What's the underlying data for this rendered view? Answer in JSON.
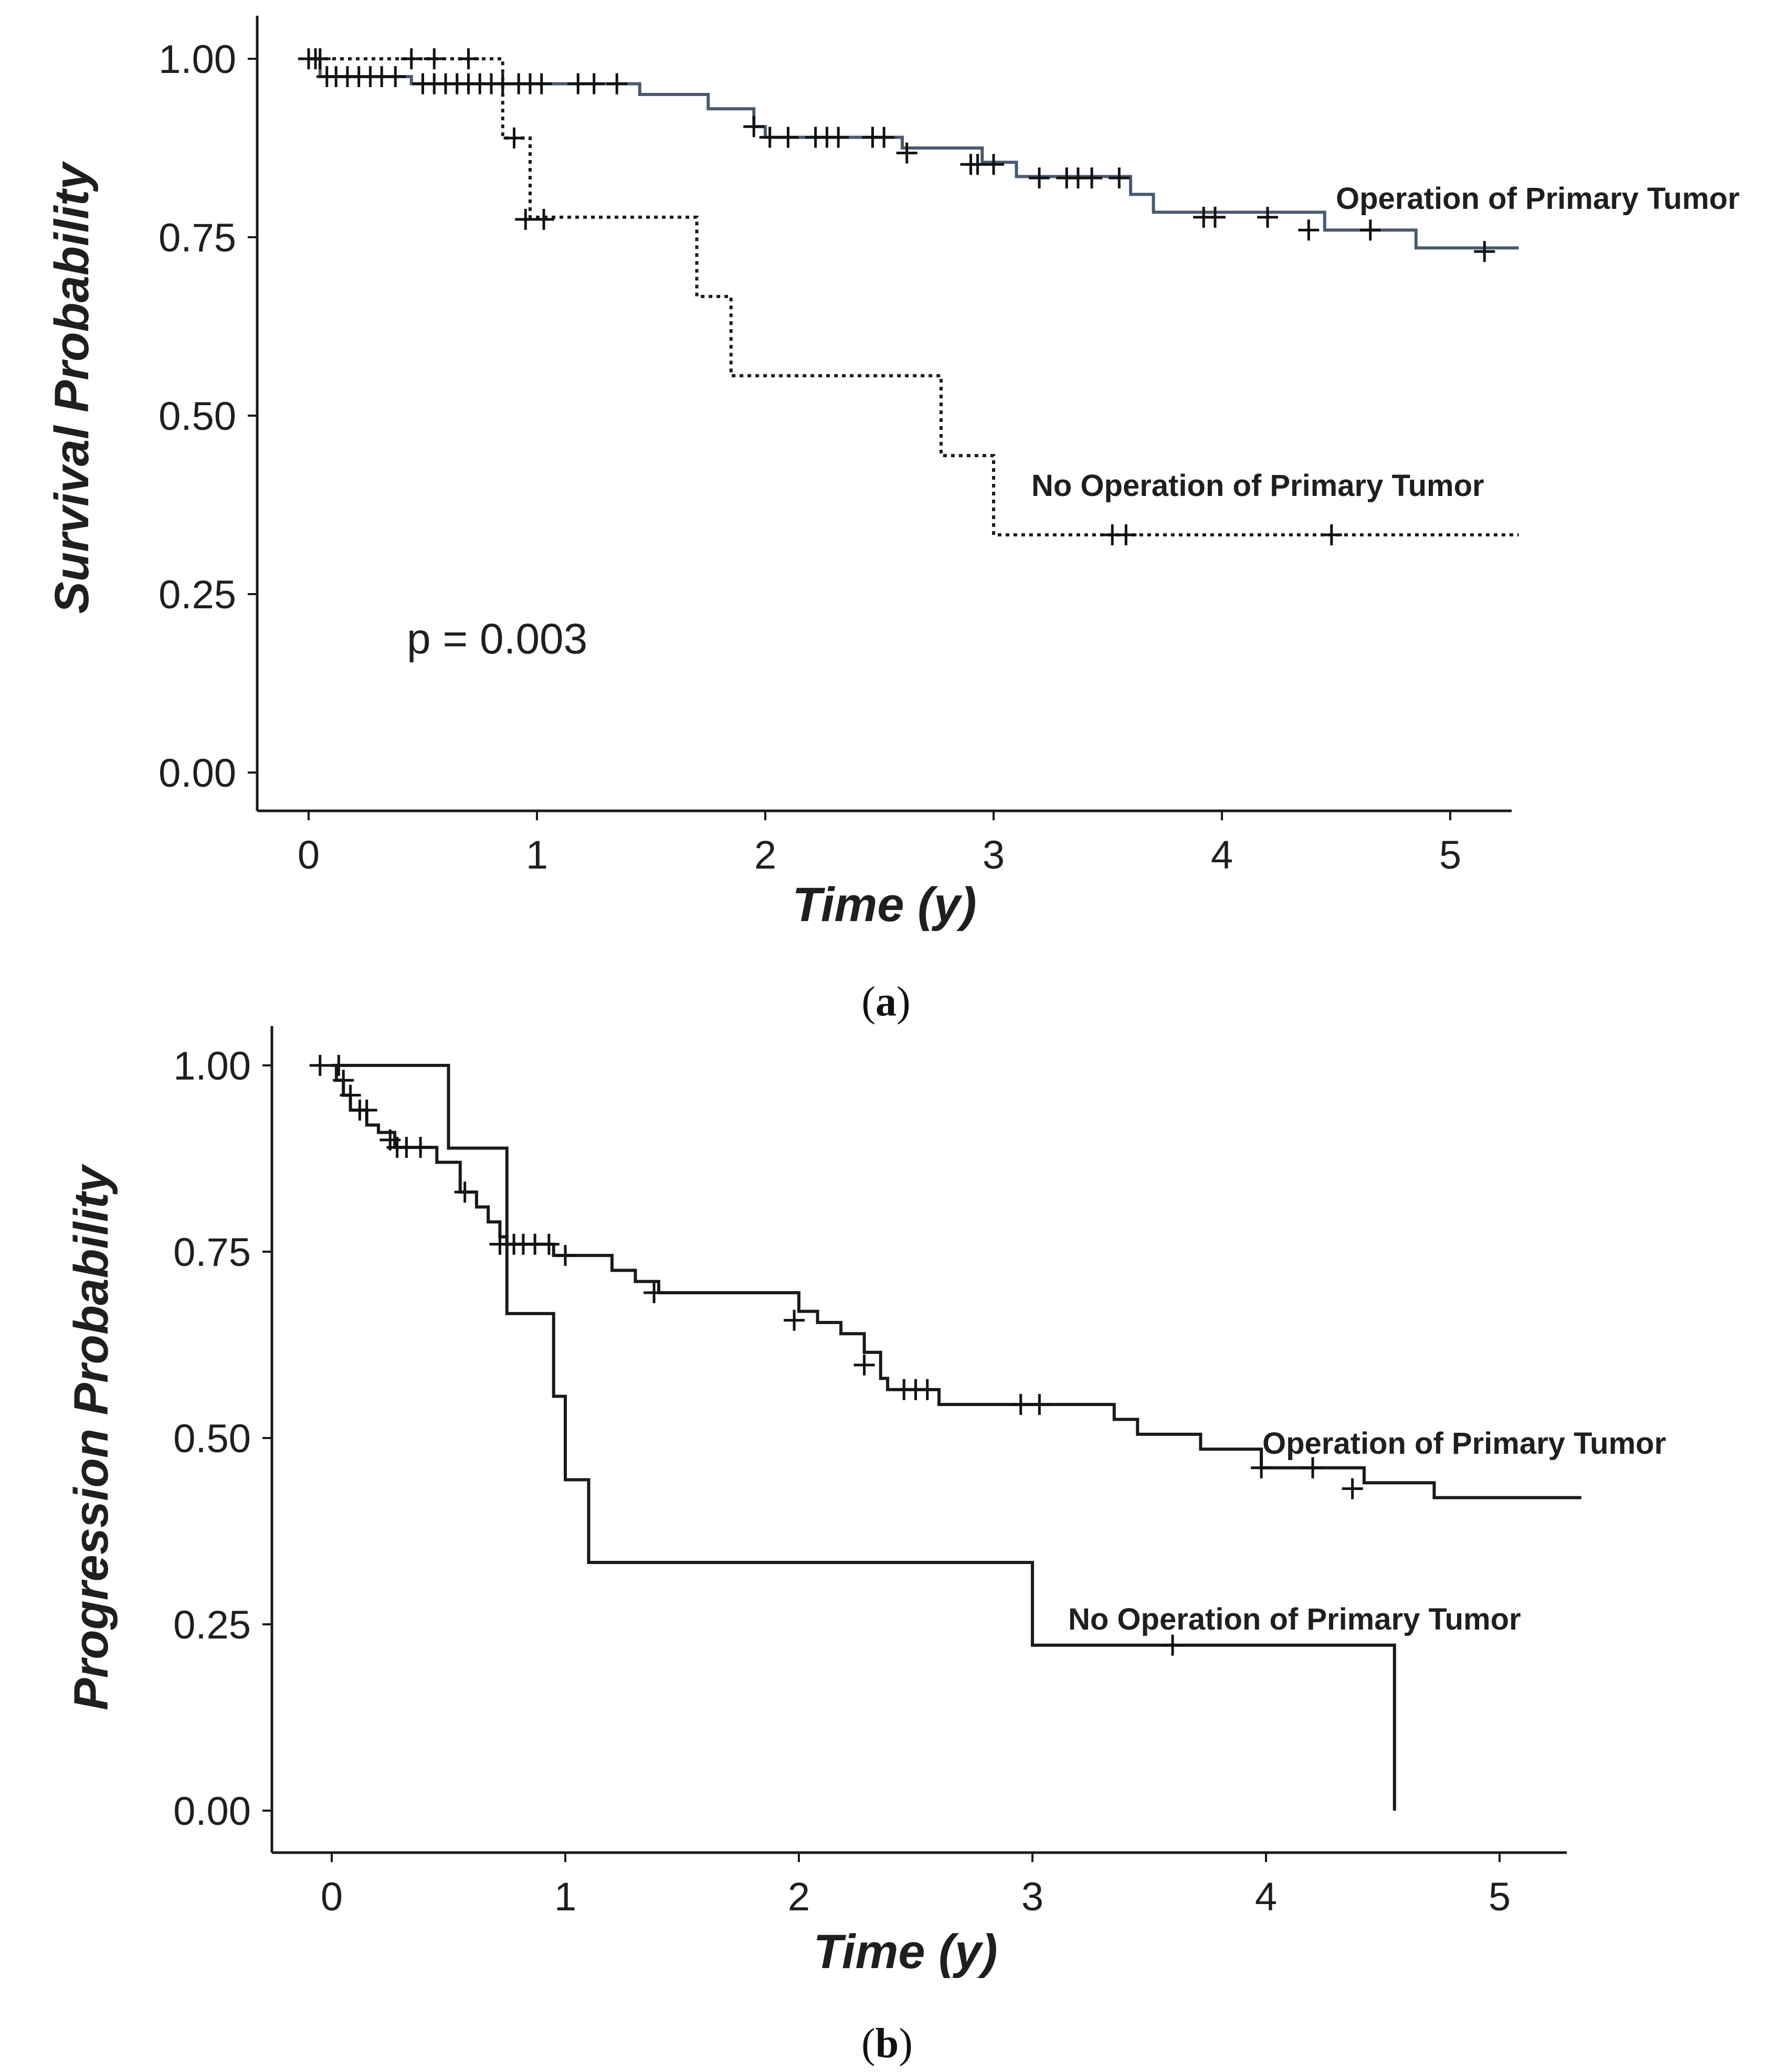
{
  "chart_data": [
    {
      "type": "line",
      "subtype": "kaplan-meier",
      "panel_label": "a",
      "xlabel": "Time (y)",
      "ylabel": "Survival Probability",
      "xlim": [
        -0.2,
        5.3
      ],
      "ylim": [
        -0.05,
        1.05
      ],
      "x_ticks": [
        "0",
        "1",
        "2",
        "3",
        "4",
        "5"
      ],
      "y_ticks": [
        "0.00",
        "0.25",
        "0.50",
        "0.75",
        "1.00"
      ],
      "annotation": "p = 0.003",
      "series": [
        {
          "name": "Operation of Primary Tumor",
          "style": "solid",
          "color": "#4a5a70",
          "steps": [
            [
              0,
              1.0
            ],
            [
              0.05,
              0.975
            ],
            [
              0.45,
              0.965
            ],
            [
              1.45,
              0.95
            ],
            [
              1.75,
              0.93
            ],
            [
              1.95,
              0.905
            ],
            [
              2.0,
              0.89
            ],
            [
              2.6,
              0.875
            ],
            [
              2.95,
              0.855
            ],
            [
              3.1,
              0.835
            ],
            [
              3.6,
              0.81
            ],
            [
              3.7,
              0.785
            ],
            [
              4.45,
              0.76
            ],
            [
              4.85,
              0.735
            ],
            [
              5.3,
              0.735
            ]
          ],
          "censored": [
            [
              0.0,
              1.0
            ],
            [
              0.03,
              1.0
            ],
            [
              0.05,
              1.0
            ],
            [
              0.08,
              0.975
            ],
            [
              0.12,
              0.975
            ],
            [
              0.17,
              0.975
            ],
            [
              0.22,
              0.975
            ],
            [
              0.27,
              0.975
            ],
            [
              0.32,
              0.975
            ],
            [
              0.38,
              0.975
            ],
            [
              0.5,
              0.965
            ],
            [
              0.55,
              0.965
            ],
            [
              0.6,
              0.965
            ],
            [
              0.65,
              0.965
            ],
            [
              0.7,
              0.965
            ],
            [
              0.75,
              0.965
            ],
            [
              0.8,
              0.965
            ],
            [
              0.85,
              0.965
            ],
            [
              0.92,
              0.965
            ],
            [
              0.97,
              0.965
            ],
            [
              1.02,
              0.965
            ],
            [
              1.18,
              0.965
            ],
            [
              1.25,
              0.965
            ],
            [
              1.35,
              0.965
            ],
            [
              1.95,
              0.905
            ],
            [
              2.02,
              0.89
            ],
            [
              2.1,
              0.89
            ],
            [
              2.22,
              0.89
            ],
            [
              2.27,
              0.89
            ],
            [
              2.32,
              0.89
            ],
            [
              2.47,
              0.89
            ],
            [
              2.52,
              0.89
            ],
            [
              2.62,
              0.868
            ],
            [
              2.9,
              0.852
            ],
            [
              2.93,
              0.852
            ],
            [
              3.0,
              0.852
            ],
            [
              3.2,
              0.833
            ],
            [
              3.32,
              0.833
            ],
            [
              3.37,
              0.833
            ],
            [
              3.43,
              0.833
            ],
            [
              3.55,
              0.833
            ],
            [
              3.92,
              0.778
            ],
            [
              3.97,
              0.778
            ],
            [
              4.2,
              0.778
            ],
            [
              4.38,
              0.76
            ],
            [
              4.65,
              0.76
            ],
            [
              5.15,
              0.73
            ]
          ]
        },
        {
          "name": "No Operation of Primary Tumor",
          "style": "dotted",
          "color": "#1a1a1a",
          "steps": [
            [
              0,
              1.0
            ],
            [
              0.85,
              0.889
            ],
            [
              0.97,
              0.778
            ],
            [
              1.7,
              0.667
            ],
            [
              1.85,
              0.556
            ],
            [
              2.77,
              0.444
            ],
            [
              3.0,
              0.333
            ],
            [
              5.3,
              0.333
            ]
          ],
          "censored": [
            [
              0.45,
              1.0
            ],
            [
              0.55,
              1.0
            ],
            [
              0.7,
              1.0
            ],
            [
              0.9,
              0.889
            ],
            [
              0.95,
              0.775
            ],
            [
              1.03,
              0.775
            ],
            [
              3.52,
              0.333
            ],
            [
              3.58,
              0.333
            ],
            [
              4.48,
              0.333
            ]
          ]
        }
      ]
    },
    {
      "type": "line",
      "subtype": "kaplan-meier",
      "panel_label": "b",
      "xlabel": "Time (y)",
      "ylabel": "Progression Probability",
      "xlim": [
        -0.25,
        5.35
      ],
      "ylim": [
        -0.05,
        1.05
      ],
      "x_ticks": [
        "0",
        "1",
        "2",
        "3",
        "4",
        "5"
      ],
      "y_ticks": [
        "0.00",
        "0.25",
        "0.50",
        "0.75",
        "1.00"
      ],
      "series": [
        {
          "name": "Operation of Primary Tumor",
          "style": "solid",
          "color": "#1a1a1a",
          "steps": [
            [
              0,
              1.0
            ],
            [
              0.02,
              0.98
            ],
            [
              0.05,
              0.96
            ],
            [
              0.08,
              0.94
            ],
            [
              0.15,
              0.92
            ],
            [
              0.2,
              0.91
            ],
            [
              0.27,
              0.89
            ],
            [
              0.45,
              0.87
            ],
            [
              0.55,
              0.83
            ],
            [
              0.62,
              0.81
            ],
            [
              0.67,
              0.79
            ],
            [
              0.72,
              0.77
            ],
            [
              0.75,
              0.76
            ],
            [
              0.95,
              0.745
            ],
            [
              1.2,
              0.725
            ],
            [
              1.3,
              0.71
            ],
            [
              1.4,
              0.695
            ],
            [
              2.0,
              0.67
            ],
            [
              2.08,
              0.655
            ],
            [
              2.18,
              0.64
            ],
            [
              2.28,
              0.615
            ],
            [
              2.35,
              0.58
            ],
            [
              2.38,
              0.565
            ],
            [
              2.6,
              0.545
            ],
            [
              3.35,
              0.525
            ],
            [
              3.45,
              0.505
            ],
            [
              3.72,
              0.485
            ],
            [
              3.98,
              0.46
            ],
            [
              4.42,
              0.44
            ],
            [
              4.72,
              0.42
            ],
            [
              5.35,
              0.42
            ]
          ],
          "censored": [
            [
              -0.05,
              1.0
            ],
            [
              0.03,
              1.0
            ],
            [
              0.05,
              0.98
            ],
            [
              0.08,
              0.96
            ],
            [
              0.12,
              0.94
            ],
            [
              0.15,
              0.94
            ],
            [
              0.25,
              0.9
            ],
            [
              0.28,
              0.89
            ],
            [
              0.32,
              0.89
            ],
            [
              0.38,
              0.89
            ],
            [
              0.57,
              0.83
            ],
            [
              0.72,
              0.76
            ],
            [
              0.78,
              0.76
            ],
            [
              0.82,
              0.76
            ],
            [
              0.87,
              0.76
            ],
            [
              0.93,
              0.76
            ],
            [
              1.0,
              0.745
            ],
            [
              1.38,
              0.695
            ],
            [
              1.98,
              0.658
            ],
            [
              2.28,
              0.598
            ],
            [
              2.45,
              0.565
            ],
            [
              2.5,
              0.565
            ],
            [
              2.55,
              0.565
            ],
            [
              2.95,
              0.545
            ],
            [
              3.03,
              0.545
            ],
            [
              3.98,
              0.46
            ],
            [
              4.2,
              0.46
            ],
            [
              4.37,
              0.432
            ]
          ]
        },
        {
          "name": "No Operation of Primary Tumor",
          "style": "solid",
          "color": "#1a1a1a",
          "steps": [
            [
              0,
              1.0
            ],
            [
              0.5,
              0.889
            ],
            [
              0.75,
              0.667
            ],
            [
              0.95,
              0.556
            ],
            [
              1.0,
              0.444
            ],
            [
              1.1,
              0.333
            ],
            [
              3.0,
              0.222
            ],
            [
              4.55,
              0.0
            ]
          ],
          "censored": [
            [
              3.6,
              0.222
            ]
          ]
        }
      ]
    }
  ]
}
